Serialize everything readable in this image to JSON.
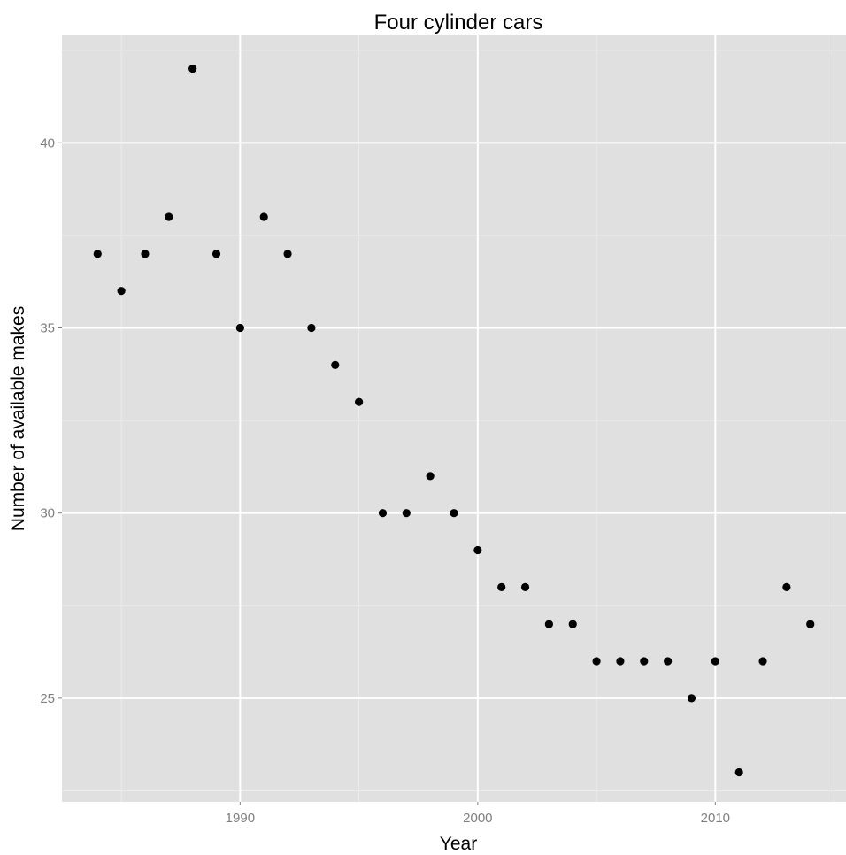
{
  "chart_data": {
    "type": "scatter",
    "title": "Four cylinder cars",
    "xlabel": "Year",
    "ylabel": "Number of available makes",
    "xlim": [
      1982.5,
      2015.5
    ],
    "ylim": [
      22.2,
      42.9
    ],
    "x_ticks": [
      1990,
      2000,
      2010
    ],
    "y_ticks": [
      25,
      30,
      35,
      40
    ],
    "x_minor_ticks": [
      1985,
      1995,
      2005,
      2015
    ],
    "y_minor_ticks": [
      22.5,
      27.5,
      32.5,
      37.5,
      42.5
    ],
    "grid": true,
    "legend": "none",
    "colors": {
      "panel": "#e0e0e0",
      "grid_major": "#ffffff",
      "grid_minor": "#ececec",
      "point": "#000000",
      "tick_label": "#7f7f7f"
    },
    "points": [
      {
        "x": 1984,
        "y": 37
      },
      {
        "x": 1985,
        "y": 36
      },
      {
        "x": 1986,
        "y": 37
      },
      {
        "x": 1987,
        "y": 38
      },
      {
        "x": 1988,
        "y": 42
      },
      {
        "x": 1989,
        "y": 37
      },
      {
        "x": 1990,
        "y": 35
      },
      {
        "x": 1991,
        "y": 38
      },
      {
        "x": 1992,
        "y": 37
      },
      {
        "x": 1993,
        "y": 35
      },
      {
        "x": 1994,
        "y": 34
      },
      {
        "x": 1995,
        "y": 33
      },
      {
        "x": 1996,
        "y": 30
      },
      {
        "x": 1997,
        "y": 30
      },
      {
        "x": 1998,
        "y": 31
      },
      {
        "x": 1999,
        "y": 30
      },
      {
        "x": 2000,
        "y": 29
      },
      {
        "x": 2001,
        "y": 28
      },
      {
        "x": 2002,
        "y": 28
      },
      {
        "x": 2003,
        "y": 27
      },
      {
        "x": 2004,
        "y": 27
      },
      {
        "x": 2005,
        "y": 26
      },
      {
        "x": 2006,
        "y": 26
      },
      {
        "x": 2007,
        "y": 26
      },
      {
        "x": 2008,
        "y": 26
      },
      {
        "x": 2009,
        "y": 25
      },
      {
        "x": 2010,
        "y": 26
      },
      {
        "x": 2011,
        "y": 23
      },
      {
        "x": 2012,
        "y": 26
      },
      {
        "x": 2013,
        "y": 28
      },
      {
        "x": 2014,
        "y": 27
      }
    ]
  }
}
